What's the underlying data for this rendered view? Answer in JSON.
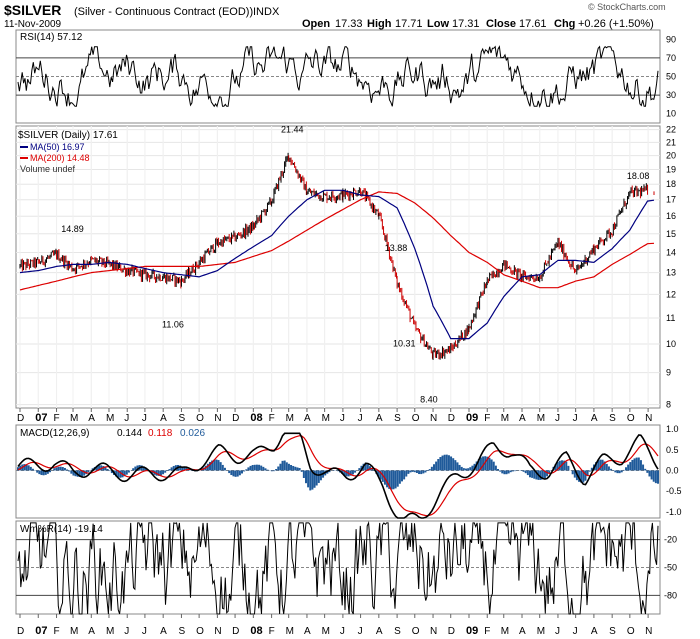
{
  "header": {
    "symbol": "$SILVER",
    "name": "(Silver - Continuous Contract (EOD))",
    "exchange": "INDX",
    "date": "11-Nov-2009",
    "open_label": "Open",
    "open": "17.33",
    "high_label": "High",
    "high": "17.71",
    "low_label": "Low",
    "low": "17.31",
    "close_label": "Close",
    "close": "17.61",
    "chg_label": "Chg",
    "chg": "+0.26 (+1.50%)",
    "credit": "© StockCharts.com"
  },
  "colors": {
    "price_bars": "#000000",
    "down_bars": "#cc0000",
    "ma50": "#000080",
    "ma200": "#dd0000",
    "macd_hist": "#1f5a9a",
    "macd_signal": "#dd0000",
    "osc_fill": "#3a5a3a"
  },
  "chart_data": [
    {
      "panel": "rsi",
      "type": "line",
      "legend": "RSI(14) 57.12",
      "ylim": [
        0,
        100
      ],
      "y_ticks": [
        10,
        30,
        50,
        70,
        90
      ],
      "ref_lines": [
        30,
        50,
        70
      ]
    },
    {
      "panel": "price",
      "type": "line",
      "title": "$SILVER (Daily) 17.61",
      "legend": [
        "$SILVER (Daily) 17.61",
        "MA(50) 16.97",
        "MA(200) 14.48",
        "Volume undef"
      ],
      "y_scale": "log",
      "ylim": [
        7.9,
        22.3
      ],
      "y_ticks": [
        8,
        9,
        10,
        11,
        12,
        13,
        14,
        15,
        16,
        17,
        18,
        19,
        20,
        21,
        22
      ],
      "x": [
        "2006-12-01",
        "2007-01-01",
        "2007-02-01",
        "2007-03-01",
        "2007-04-01",
        "2007-05-01",
        "2007-06-01",
        "2007-07-01",
        "2007-08-01",
        "2007-09-01",
        "2007-10-01",
        "2007-11-01",
        "2007-12-01",
        "2008-01-01",
        "2008-02-01",
        "2008-03-01",
        "2008-04-01",
        "2008-05-01",
        "2008-06-01",
        "2008-07-01",
        "2008-08-01",
        "2008-09-01",
        "2008-10-01",
        "2008-11-01",
        "2008-12-01",
        "2009-01-01",
        "2009-02-01",
        "2009-03-01",
        "2009-04-01",
        "2009-05-01",
        "2009-06-01",
        "2009-07-01",
        "2009-08-01",
        "2009-09-01",
        "2009-10-01",
        "2009-11-01"
      ],
      "series": [
        {
          "name": "$SILVER",
          "values": [
            13.3,
            13.5,
            13.9,
            13.2,
            13.6,
            13.4,
            13.1,
            12.9,
            12.8,
            12.6,
            13.5,
            14.5,
            14.8,
            15.4,
            16.9,
            20.0,
            17.5,
            17.2,
            17.3,
            17.6,
            16.0,
            12.5,
            10.6,
            9.6,
            9.8,
            10.6,
            12.6,
            13.4,
            12.8,
            12.8,
            14.5,
            13.0,
            14.2,
            15.2,
            17.4,
            17.61
          ]
        },
        {
          "name": "MA(50)",
          "values": [
            13.0,
            13.1,
            13.3,
            13.4,
            13.4,
            13.5,
            13.4,
            13.2,
            13.0,
            12.9,
            12.8,
            13.1,
            13.7,
            14.3,
            14.9,
            16.0,
            17.0,
            17.6,
            17.6,
            17.3,
            17.2,
            16.5,
            14.2,
            11.5,
            10.2,
            10.2,
            10.8,
            11.9,
            12.8,
            12.9,
            13.6,
            13.6,
            13.5,
            14.2,
            15.2,
            16.97
          ]
        },
        {
          "name": "MA(200)",
          "values": [
            12.2,
            12.4,
            12.6,
            12.8,
            13.0,
            13.1,
            13.2,
            13.3,
            13.3,
            13.3,
            13.3,
            13.4,
            13.5,
            13.8,
            14.1,
            14.6,
            15.2,
            15.8,
            16.4,
            17.0,
            17.5,
            17.4,
            16.8,
            15.9,
            14.9,
            14.0,
            13.5,
            12.9,
            12.6,
            12.3,
            12.3,
            12.6,
            12.8,
            13.4,
            13.9,
            14.48
          ]
        }
      ],
      "annotations": [
        {
          "label": "14.89",
          "x": "2007-02-26",
          "y": 14.89
        },
        {
          "label": "11.06",
          "x": "2007-08-16",
          "y": 11.06
        },
        {
          "label": "21.44",
          "x": "2008-03-05",
          "y": 21.44
        },
        {
          "label": "13.88",
          "x": "2008-08-28",
          "y": 13.88
        },
        {
          "label": "10.31",
          "x": "2008-09-11",
          "y": 10.31
        },
        {
          "label": "8.40",
          "x": "2008-10-27",
          "y": 8.4
        },
        {
          "label": "18.08",
          "x": "2009-10-13",
          "y": 18.08
        }
      ]
    },
    {
      "panel": "macd",
      "type": "line",
      "legend": [
        "MACD(12,26,9)",
        "0.144",
        "0.118",
        "0.026"
      ],
      "ylim": [
        -1.0,
        1.0
      ],
      "y_ticks": [
        -1.0,
        -0.5,
        0.0,
        0.5,
        1.0
      ]
    },
    {
      "panel": "williams",
      "type": "line",
      "legend": "Wm%R(14) -19.14",
      "ylim": [
        -100,
        0
      ],
      "y_ticks": [
        -80,
        -50,
        -20
      ],
      "ref_lines": [
        -80,
        -50,
        -20
      ]
    }
  ],
  "x_axis": {
    "labels": [
      {
        "text": "D",
        "bold": false
      },
      {
        "text": "07",
        "bold": true
      },
      {
        "text": "F",
        "bold": false
      },
      {
        "text": "M",
        "bold": false
      },
      {
        "text": "A",
        "bold": false
      },
      {
        "text": "M",
        "bold": false
      },
      {
        "text": "J",
        "bold": false
      },
      {
        "text": "J",
        "bold": false
      },
      {
        "text": "A",
        "bold": false
      },
      {
        "text": "S",
        "bold": false
      },
      {
        "text": "O",
        "bold": false
      },
      {
        "text": "N",
        "bold": false
      },
      {
        "text": "D",
        "bold": false
      },
      {
        "text": "08",
        "bold": true
      },
      {
        "text": "F",
        "bold": false
      },
      {
        "text": "M",
        "bold": false
      },
      {
        "text": "A",
        "bold": false
      },
      {
        "text": "M",
        "bold": false
      },
      {
        "text": "J",
        "bold": false
      },
      {
        "text": "J",
        "bold": false
      },
      {
        "text": "A",
        "bold": false
      },
      {
        "text": "S",
        "bold": false
      },
      {
        "text": "O",
        "bold": false
      },
      {
        "text": "N",
        "bold": false
      },
      {
        "text": "D",
        "bold": false
      },
      {
        "text": "09",
        "bold": true
      },
      {
        "text": "F",
        "bold": false
      },
      {
        "text": "M",
        "bold": false
      },
      {
        "text": "A",
        "bold": false
      },
      {
        "text": "M",
        "bold": false
      },
      {
        "text": "J",
        "bold": false
      },
      {
        "text": "J",
        "bold": false
      },
      {
        "text": "A",
        "bold": false
      },
      {
        "text": "S",
        "bold": false
      },
      {
        "text": "O",
        "bold": false
      },
      {
        "text": "N",
        "bold": false
      }
    ]
  }
}
